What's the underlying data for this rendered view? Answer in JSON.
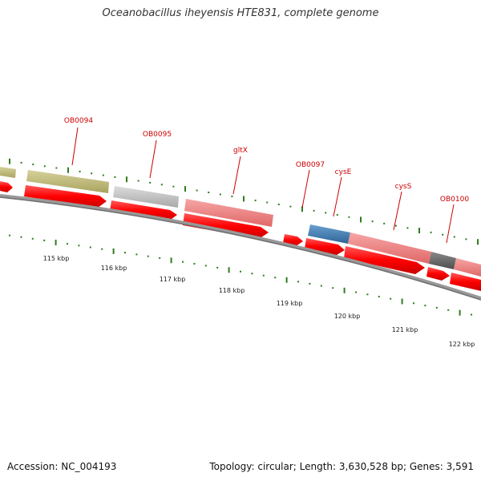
{
  "title": "Oceanobacillus iheyensis HTE831, complete genome",
  "footer": {
    "accession": "Accession: NC_004193",
    "topology": "Topology: circular; Length: 3,630,528 bp; Genes: 3,591"
  },
  "gene_labels": [
    {
      "id": "ob0094",
      "text": "OB0094"
    },
    {
      "id": "ob0095",
      "text": "OB0095"
    },
    {
      "id": "gltx",
      "text": "gltX"
    },
    {
      "id": "ob0097",
      "text": "OB0097"
    },
    {
      "id": "cyse",
      "text": "cysE"
    },
    {
      "id": "cyss",
      "text": "cysS"
    },
    {
      "id": "ob0100",
      "text": "OB0100"
    }
  ],
  "kbp_labels": [
    {
      "id": "115",
      "text": "115 kbp"
    },
    {
      "id": "116",
      "text": "116 kbp"
    },
    {
      "id": "117",
      "text": "117 kbp"
    },
    {
      "id": "118",
      "text": "118 kbp"
    },
    {
      "id": "119",
      "text": "119 kbp"
    },
    {
      "id": "120",
      "text": "120 kbp"
    },
    {
      "id": "121",
      "text": "121 kbp"
    },
    {
      "id": "122",
      "text": "122 kbp"
    }
  ],
  "colors": {
    "cds_arrow": "#ff0000",
    "olive_feature": "#c0bb7a",
    "gray_feature": "#c3c3c3",
    "pink_feature": "#f08080",
    "blue_feature": "#4a84b8",
    "dark_feature": "#6a6a6a",
    "backbone": "#808080",
    "tick": "#2e7d1e",
    "label_red": "#cc0000"
  }
}
